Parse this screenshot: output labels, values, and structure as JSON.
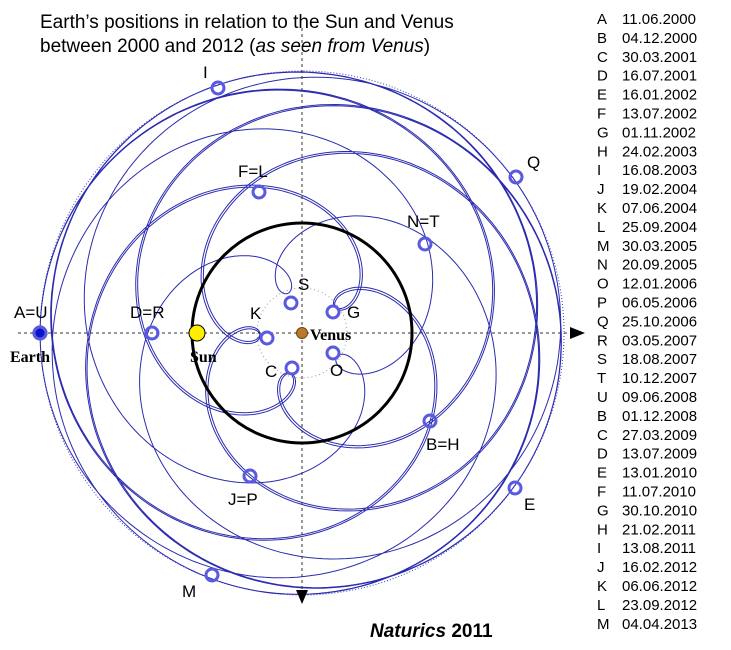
{
  "title": {
    "line1": "Earth’s positions in relation to the Sun and Venus",
    "line2_prefix": "between 2000 and 2012 (",
    "line2_italic": "as seen from Venus",
    "line2_suffix": ")"
  },
  "bodies": {
    "earth": "Earth",
    "sun": "Sun",
    "venus": "Venus"
  },
  "points": [
    {
      "label": "A=U"
    },
    {
      "label": "D=R"
    },
    {
      "label": "S"
    },
    {
      "label": "G"
    },
    {
      "label": "K"
    },
    {
      "label": "C"
    },
    {
      "label": "O"
    },
    {
      "label": "F=L"
    },
    {
      "label": "N=T"
    },
    {
      "label": "I"
    },
    {
      "label": "Q"
    },
    {
      "label": "B=H"
    },
    {
      "label": "E"
    },
    {
      "label": "J=P"
    },
    {
      "label": "M"
    }
  ],
  "dates": [
    {
      "letter": "A",
      "date": "11.06.2000"
    },
    {
      "letter": "B",
      "date": "04.12.2000"
    },
    {
      "letter": "C",
      "date": "30.03.2001"
    },
    {
      "letter": "D",
      "date": "16.07.2001"
    },
    {
      "letter": "E",
      "date": "16.01.2002"
    },
    {
      "letter": "F",
      "date": "13.07.2002"
    },
    {
      "letter": "G",
      "date": "01.11.2002"
    },
    {
      "letter": "H",
      "date": "24.02.2003"
    },
    {
      "letter": "I",
      "date": "16.08.2003"
    },
    {
      "letter": "J",
      "date": "19.02.2004"
    },
    {
      "letter": "K",
      "date": "07.06.2004"
    },
    {
      "letter": "L",
      "date": "25.09.2004"
    },
    {
      "letter": "M",
      "date": "30.03.2005"
    },
    {
      "letter": "N",
      "date": "20.09.2005"
    },
    {
      "letter": "O",
      "date": "12.01.2006"
    },
    {
      "letter": "P",
      "date": "06.05.2006"
    },
    {
      "letter": "Q",
      "date": "25.10.2006"
    },
    {
      "letter": "R",
      "date": "03.05.2007"
    },
    {
      "letter": "S",
      "date": "18.08.2007"
    },
    {
      "letter": "T",
      "date": "10.12.2007"
    },
    {
      "letter": "U",
      "date": "09.06.2008"
    },
    {
      "letter": "B",
      "date": "01.12.2008"
    },
    {
      "letter": "C",
      "date": "27.03.2009"
    },
    {
      "letter": "D",
      "date": "13.07.2009"
    },
    {
      "letter": "E",
      "date": "13.01.2010"
    },
    {
      "letter": "F",
      "date": "11.07.2010"
    },
    {
      "letter": "G",
      "date": "30.10.2010"
    },
    {
      "letter": "H",
      "date": "21.02.2011"
    },
    {
      "letter": "I",
      "date": "13.08.2011"
    },
    {
      "letter": "J",
      "date": "16.02.2012"
    },
    {
      "letter": "K",
      "date": "06.06.2012"
    },
    {
      "letter": "L",
      "date": "23.09.2012"
    },
    {
      "letter": "M",
      "date": "04.04.2013"
    }
  ],
  "credit": {
    "name": "Naturics",
    "year": "2011"
  }
}
